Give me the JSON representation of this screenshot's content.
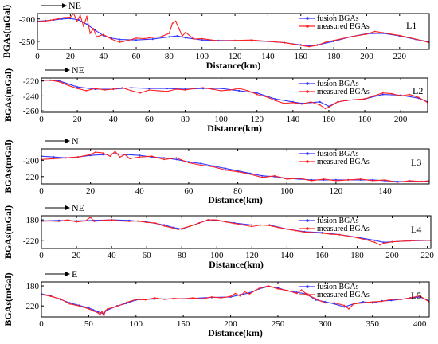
{
  "chart_data": [
    {
      "type": "line",
      "panel_label": "L1",
      "direction": "NE",
      "xlabel": "Distance(km)",
      "ylabel": "BGAs(mGal)",
      "xlim": [
        0,
        238
      ],
      "ylim": [
        -268,
        -188
      ],
      "xticks": [
        0,
        20,
        40,
        60,
        80,
        100,
        120,
        140,
        160,
        180,
        200,
        220
      ],
      "yticks": [
        -200,
        -250
      ],
      "legend_position": "top-right",
      "series": [
        {
          "name": "fusion BGAs",
          "color": "#3333ff",
          "x": [
            0,
            5,
            10,
            15,
            20,
            25,
            30,
            35,
            40,
            45,
            50,
            60,
            70,
            80,
            85,
            90,
            100,
            110,
            120,
            130,
            140,
            150,
            160,
            165,
            170,
            180,
            190,
            200,
            210,
            220,
            230,
            238
          ],
          "y": [
            -205,
            -204,
            -202,
            -200,
            -199,
            -202,
            -212,
            -225,
            -237,
            -243,
            -246,
            -247,
            -245,
            -240,
            -238,
            -242,
            -247,
            -248,
            -248,
            -249,
            -250,
            -253,
            -258,
            -260,
            -258,
            -250,
            -240,
            -233,
            -232,
            -238,
            -246,
            -251
          ]
        },
        {
          "name": "measured BGAs",
          "color": "#ff2020",
          "x": [
            0,
            4,
            8,
            12,
            16,
            20,
            22,
            24,
            26,
            28,
            30,
            32,
            34,
            36,
            40,
            45,
            50,
            55,
            60,
            65,
            70,
            75,
            80,
            82,
            84,
            86,
            88,
            90,
            95,
            100,
            110,
            120,
            130,
            140,
            150,
            160,
            165,
            170,
            175,
            180,
            185,
            190,
            200,
            205,
            210,
            220,
            230,
            238
          ],
          "y": [
            -206,
            -205,
            -203,
            -200,
            -197,
            -196,
            -188,
            -205,
            -192,
            -216,
            -195,
            -232,
            -222,
            -240,
            -235,
            -245,
            -252,
            -248,
            -243,
            -244,
            -241,
            -240,
            -232,
            -210,
            -205,
            -222,
            -238,
            -230,
            -245,
            -244,
            -249,
            -248,
            -247,
            -250,
            -253,
            -259,
            -262,
            -259,
            -252,
            -248,
            -244,
            -240,
            -234,
            -228,
            -231,
            -237,
            -245,
            -253
          ]
        }
      ]
    },
    {
      "type": "line",
      "panel_label": "L2",
      "direction": "NE",
      "xlabel": "Distance(km)",
      "ylabel": "BGAs(mGal)",
      "xlim": [
        0,
        215
      ],
      "ylim": [
        -262,
        -216
      ],
      "xticks": [
        0,
        20,
        40,
        60,
        80,
        100,
        120,
        140,
        160,
        180,
        200
      ],
      "yticks": [
        -220,
        -240,
        -260
      ],
      "legend_position": "top-right",
      "series": [
        {
          "name": "fusion BGAs",
          "color": "#3333ff",
          "x": [
            0,
            5,
            10,
            20,
            30,
            40,
            50,
            60,
            70,
            80,
            90,
            100,
            110,
            120,
            130,
            140,
            145,
            150,
            155,
            160,
            165,
            170,
            180,
            190,
            200,
            210,
            215
          ],
          "y": [
            -219,
            -219,
            -220,
            -228,
            -231,
            -231,
            -229,
            -230,
            -230,
            -231,
            -230,
            -230,
            -233,
            -236,
            -244,
            -248,
            -250,
            -249,
            -248,
            -254,
            -248,
            -246,
            -244,
            -238,
            -239,
            -243,
            -248
          ]
        },
        {
          "name": "measured BGAs",
          "color": "#ff2020",
          "x": [
            0,
            5,
            10,
            15,
            20,
            25,
            30,
            35,
            40,
            45,
            50,
            55,
            60,
            65,
            70,
            75,
            80,
            85,
            90,
            95,
            100,
            105,
            110,
            115,
            120,
            125,
            130,
            135,
            140,
            145,
            150,
            155,
            158,
            160,
            165,
            170,
            175,
            180,
            185,
            190,
            195,
            200,
            205,
            210,
            215
          ],
          "y": [
            -219,
            -219,
            -221,
            -226,
            -230,
            -233,
            -230,
            -232,
            -231,
            -229,
            -233,
            -236,
            -232,
            -233,
            -234,
            -231,
            -232,
            -230,
            -229,
            -231,
            -233,
            -232,
            -230,
            -233,
            -238,
            -241,
            -246,
            -250,
            -249,
            -251,
            -248,
            -252,
            -257,
            -255,
            -248,
            -246,
            -245,
            -244,
            -240,
            -236,
            -237,
            -240,
            -238,
            -242,
            -249
          ]
        }
      ]
    },
    {
      "type": "line",
      "panel_label": "L3",
      "direction": "N",
      "xlabel": "Distance(km)",
      "ylabel": "BGAs(mGal)",
      "xlim": [
        0,
        158
      ],
      "ylim": [
        -229,
        -186
      ],
      "xticks": [
        0,
        20,
        40,
        60,
        80,
        100,
        120,
        140
      ],
      "yticks": [
        -200,
        -220
      ],
      "legend_position": "top-right",
      "series": [
        {
          "name": "fusion BGAs",
          "color": "#3333ff",
          "x": [
            0,
            5,
            10,
            15,
            20,
            25,
            30,
            35,
            40,
            45,
            50,
            55,
            60,
            65,
            70,
            75,
            80,
            85,
            90,
            95,
            100,
            105,
            110,
            115,
            120,
            125,
            130,
            135,
            140,
            145,
            150,
            155,
            158
          ],
          "y": [
            -195,
            -196,
            -197,
            -196,
            -194,
            -193,
            -192,
            -193,
            -194,
            -196,
            -197,
            -199,
            -202,
            -204,
            -207,
            -210,
            -213,
            -216,
            -219,
            -220,
            -222,
            -223,
            -224,
            -224,
            -224,
            -224,
            -224,
            -224,
            -225,
            -226,
            -226,
            -226,
            -226
          ]
        },
        {
          "name": "measured BGAs",
          "color": "#ff2020",
          "x": [
            0,
            5,
            10,
            15,
            20,
            22,
            25,
            28,
            30,
            32,
            34,
            36,
            40,
            45,
            50,
            55,
            60,
            65,
            70,
            75,
            80,
            85,
            90,
            95,
            100,
            105,
            110,
            115,
            120,
            125,
            130,
            135,
            140,
            145,
            150,
            155,
            158
          ],
          "y": [
            -199,
            -198,
            -197,
            -196,
            -193,
            -190,
            -191,
            -195,
            -189,
            -196,
            -193,
            -198,
            -196,
            -195,
            -199,
            -197,
            -203,
            -206,
            -208,
            -212,
            -214,
            -217,
            -221,
            -219,
            -223,
            -222,
            -225,
            -223,
            -225,
            -224,
            -223,
            -225,
            -224,
            -227,
            -225,
            -226,
            -225
          ]
        }
      ]
    },
    {
      "type": "line",
      "panel_label": "L4",
      "direction": "NE",
      "xlabel": "Distance(km)",
      "ylabel": "BGAs(mGal)",
      "xlim": [
        0,
        222
      ],
      "ylim": [
        -236,
        -172
      ],
      "xticks": [
        0,
        20,
        40,
        60,
        80,
        100,
        120,
        140,
        160,
        180,
        200,
        220
      ],
      "yticks": [
        -180,
        -220
      ],
      "legend_position": "top-right",
      "series": [
        {
          "name": "fusion BGAs",
          "color": "#3333ff",
          "x": [
            0,
            10,
            20,
            30,
            40,
            50,
            60,
            70,
            75,
            80,
            90,
            95,
            100,
            110,
            120,
            130,
            140,
            150,
            160,
            170,
            180,
            190,
            195,
            200,
            210,
            222
          ],
          "y": [
            -182,
            -181,
            -182,
            -181,
            -180,
            -181,
            -184,
            -190,
            -195,
            -198,
            -186,
            -180,
            -181,
            -186,
            -190,
            -190,
            -198,
            -203,
            -205,
            -209,
            -214,
            -220,
            -224,
            -223,
            -221,
            -220
          ]
        },
        {
          "name": "measured BGAs",
          "color": "#ff2020",
          "x": [
            0,
            5,
            10,
            15,
            20,
            25,
            28,
            30,
            35,
            40,
            45,
            50,
            55,
            60,
            65,
            70,
            75,
            78,
            80,
            85,
            90,
            95,
            100,
            105,
            110,
            115,
            120,
            125,
            130,
            135,
            140,
            145,
            150,
            155,
            160,
            165,
            170,
            175,
            180,
            185,
            190,
            193,
            195,
            200,
            205,
            210,
            215,
            222
          ],
          "y": [
            -183,
            -182,
            -183,
            -180,
            -184,
            -182,
            -175,
            -183,
            -181,
            -180,
            -182,
            -183,
            -182,
            -185,
            -186,
            -192,
            -196,
            -199,
            -197,
            -192,
            -186,
            -180,
            -180,
            -184,
            -187,
            -190,
            -193,
            -190,
            -191,
            -195,
            -198,
            -201,
            -204,
            -205,
            -206,
            -208,
            -209,
            -212,
            -215,
            -219,
            -224,
            -229,
            -226,
            -223,
            -222,
            -221,
            -220,
            -220
          ]
        }
      ]
    },
    {
      "type": "line",
      "panel_label": "L5",
      "direction": "E",
      "xlabel": "Distance(km)",
      "ylabel": "BGAs(mGal)",
      "xlim": [
        0,
        410
      ],
      "ylim": [
        -242,
        -172
      ],
      "xticks": [
        0,
        50,
        100,
        150,
        200,
        250,
        300,
        350,
        400
      ],
      "yticks": [
        -180,
        -220
      ],
      "legend_position": "top-right",
      "series": [
        {
          "name": "fusion BGAs",
          "color": "#3333ff",
          "x": [
            0,
            10,
            20,
            30,
            40,
            50,
            55,
            60,
            65,
            70,
            80,
            90,
            100,
            120,
            140,
            160,
            180,
            200,
            210,
            220,
            230,
            240,
            250,
            260,
            270,
            280,
            290,
            300,
            310,
            320,
            330,
            340,
            350,
            360,
            370,
            380,
            390,
            400,
            410
          ],
          "y": [
            -196,
            -200,
            -207,
            -214,
            -219,
            -224,
            -228,
            -232,
            -235,
            -228,
            -220,
            -215,
            -208,
            -206,
            -206,
            -205,
            -203,
            -202,
            -198,
            -194,
            -186,
            -181,
            -184,
            -190,
            -193,
            -196,
            -208,
            -212,
            -216,
            -222,
            -216,
            -212,
            -214,
            -210,
            -209,
            -207,
            -204,
            -202,
            -210
          ]
        },
        {
          "name": "measured BGAs",
          "color": "#ff2020",
          "x": [
            0,
            10,
            20,
            30,
            40,
            50,
            55,
            60,
            62,
            64,
            66,
            68,
            70,
            80,
            90,
            100,
            110,
            120,
            130,
            140,
            150,
            160,
            170,
            180,
            190,
            200,
            205,
            210,
            215,
            220,
            230,
            240,
            250,
            260,
            270,
            275,
            280,
            290,
            300,
            310,
            320,
            325,
            330,
            340,
            350,
            360,
            370,
            380,
            390,
            400,
            410
          ],
          "y": [
            -197,
            -201,
            -206,
            -216,
            -220,
            -226,
            -230,
            -234,
            -238,
            -231,
            -239,
            -229,
            -226,
            -221,
            -213,
            -207,
            -208,
            -204,
            -207,
            -205,
            -206,
            -204,
            -206,
            -202,
            -204,
            -201,
            -195,
            -200,
            -192,
            -196,
            -185,
            -180,
            -186,
            -189,
            -195,
            -188,
            -196,
            -206,
            -214,
            -214,
            -219,
            -226,
            -216,
            -214,
            -212,
            -211,
            -207,
            -207,
            -204,
            -200,
            -212
          ]
        }
      ]
    }
  ]
}
